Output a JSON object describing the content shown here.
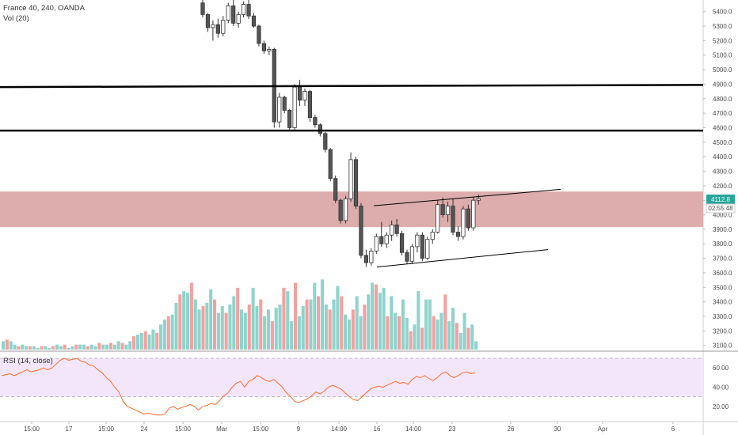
{
  "header": {
    "symbol": "France 40, 240, OANDA",
    "volume_label": "Vol (20)",
    "rsi_label": "RSI (14, close)"
  },
  "price_tag": {
    "price": "4112.8",
    "countdown": "02:55:48"
  },
  "colors": {
    "up": "#26a69a",
    "down": "#ef5350",
    "candle_body": "#555555",
    "vol_up": "#8fd3cc",
    "vol_down": "#f5a0a0",
    "zone": "#d9a3a3",
    "rsi_line": "#ff6d2a",
    "rsi_band": "#f3e6fb"
  },
  "chart_data": [
    {
      "type": "candlestick",
      "title": "France 40, 240, OANDA",
      "y_axis_ticks": [
        3100,
        3200,
        3300,
        3400,
        3500,
        3600,
        3700,
        3800,
        3900,
        4000,
        4100,
        4200,
        4300,
        4400,
        4500,
        4600,
        4700,
        4800,
        4900,
        5000,
        5100,
        5200,
        5300,
        5400
      ],
      "ylim": [
        3060,
        5480
      ],
      "x_axis_ticks": [
        "15:00",
        "17",
        "15:00",
        "24",
        "15:00",
        "Mar",
        "15:00",
        "9",
        "14:00",
        "16",
        "14:00",
        "23",
        "26",
        "30",
        "Apr",
        "6"
      ],
      "horizontal_lines": [
        4580
      ],
      "sloped_line": {
        "from": 4880,
        "to": 4895
      },
      "resistance_zone": [
        3915,
        4160
      ],
      "channel": {
        "upper": [
          4062,
          4175
        ],
        "lower": [
          3640,
          3760
        ]
      },
      "candles": [
        {
          "o": 5460,
          "h": 5480,
          "l": 5360,
          "c": 5380
        },
        {
          "o": 5380,
          "h": 5390,
          "l": 5260,
          "c": 5290
        },
        {
          "o": 5290,
          "h": 5340,
          "l": 5200,
          "c": 5310
        },
        {
          "o": 5310,
          "h": 5350,
          "l": 5220,
          "c": 5250
        },
        {
          "o": 5250,
          "h": 5370,
          "l": 5230,
          "c": 5340
        },
        {
          "o": 5340,
          "h": 5460,
          "l": 5320,
          "c": 5440
        },
        {
          "o": 5440,
          "h": 5480,
          "l": 5300,
          "c": 5320
        },
        {
          "o": 5320,
          "h": 5400,
          "l": 5290,
          "c": 5380
        },
        {
          "o": 5380,
          "h": 5470,
          "l": 5360,
          "c": 5450
        },
        {
          "o": 5450,
          "h": 5480,
          "l": 5350,
          "c": 5370
        },
        {
          "o": 5370,
          "h": 5390,
          "l": 5290,
          "c": 5300
        },
        {
          "o": 5300,
          "h": 5310,
          "l": 5160,
          "c": 5180
        },
        {
          "o": 5180,
          "h": 5200,
          "l": 5110,
          "c": 5130
        },
        {
          "o": 5130,
          "h": 5160,
          "l": 5100,
          "c": 5140
        },
        {
          "o": 5140,
          "h": 5150,
          "l": 4600,
          "c": 4640
        },
        {
          "o": 4640,
          "h": 4840,
          "l": 4600,
          "c": 4810
        },
        {
          "o": 4810,
          "h": 4820,
          "l": 4700,
          "c": 4720
        },
        {
          "o": 4720,
          "h": 4730,
          "l": 4580,
          "c": 4600
        },
        {
          "o": 4600,
          "h": 4900,
          "l": 4580,
          "c": 4880
        },
        {
          "o": 4880,
          "h": 4930,
          "l": 4750,
          "c": 4790
        },
        {
          "o": 4790,
          "h": 4870,
          "l": 4750,
          "c": 4850
        },
        {
          "o": 4850,
          "h": 4860,
          "l": 4640,
          "c": 4670
        },
        {
          "o": 4670,
          "h": 4690,
          "l": 4600,
          "c": 4620
        },
        {
          "o": 4620,
          "h": 4630,
          "l": 4540,
          "c": 4560
        },
        {
          "o": 4560,
          "h": 4570,
          "l": 4430,
          "c": 4450
        },
        {
          "o": 4450,
          "h": 4460,
          "l": 4230,
          "c": 4250
        },
        {
          "o": 4250,
          "h": 4270,
          "l": 4080,
          "c": 4100
        },
        {
          "o": 4100,
          "h": 4110,
          "l": 3940,
          "c": 3960
        },
        {
          "o": 3960,
          "h": 4130,
          "l": 3940,
          "c": 4110
        },
        {
          "o": 4110,
          "h": 4430,
          "l": 4090,
          "c": 4380
        },
        {
          "o": 4380,
          "h": 4400,
          "l": 4040,
          "c": 4060
        },
        {
          "o": 4060,
          "h": 4080,
          "l": 3700,
          "c": 3720
        },
        {
          "o": 3720,
          "h": 3760,
          "l": 3640,
          "c": 3670
        },
        {
          "o": 3670,
          "h": 3770,
          "l": 3650,
          "c": 3750
        },
        {
          "o": 3750,
          "h": 3870,
          "l": 3730,
          "c": 3850
        },
        {
          "o": 3850,
          "h": 3950,
          "l": 3780,
          "c": 3800
        },
        {
          "o": 3800,
          "h": 3880,
          "l": 3770,
          "c": 3860
        },
        {
          "o": 3860,
          "h": 3960,
          "l": 3820,
          "c": 3930
        },
        {
          "o": 3930,
          "h": 3970,
          "l": 3850,
          "c": 3870
        },
        {
          "o": 3870,
          "h": 3890,
          "l": 3720,
          "c": 3740
        },
        {
          "o": 3740,
          "h": 3760,
          "l": 3660,
          "c": 3680
        },
        {
          "o": 3680,
          "h": 3800,
          "l": 3660,
          "c": 3780
        },
        {
          "o": 3780,
          "h": 3880,
          "l": 3740,
          "c": 3860
        },
        {
          "o": 3860,
          "h": 3880,
          "l": 3680,
          "c": 3700
        },
        {
          "o": 3700,
          "h": 3850,
          "l": 3690,
          "c": 3830
        },
        {
          "o": 3830,
          "h": 3900,
          "l": 3800,
          "c": 3880
        },
        {
          "o": 3880,
          "h": 4100,
          "l": 3870,
          "c": 4070
        },
        {
          "o": 4070,
          "h": 4120,
          "l": 3980,
          "c": 4000
        },
        {
          "o": 4000,
          "h": 4090,
          "l": 3950,
          "c": 4060
        },
        {
          "o": 4060,
          "h": 4110,
          "l": 3860,
          "c": 3880
        },
        {
          "o": 3880,
          "h": 3920,
          "l": 3820,
          "c": 3850
        },
        {
          "o": 3850,
          "h": 4060,
          "l": 3830,
          "c": 4040
        },
        {
          "o": 4040,
          "h": 4070,
          "l": 3890,
          "c": 3910
        },
        {
          "o": 3910,
          "h": 4120,
          "l": 3890,
          "c": 4100
        },
        {
          "o": 4100,
          "h": 4140,
          "l": 4070,
          "c": 4112
        }
      ]
    },
    {
      "type": "bar",
      "title": "Vol (20)",
      "values": [
        5,
        6,
        5,
        3,
        2,
        3,
        2,
        2,
        2,
        1,
        2,
        2,
        1,
        2,
        3,
        2,
        3,
        1,
        2,
        3,
        3,
        3,
        2,
        3,
        2,
        4,
        3,
        3,
        4,
        3,
        5,
        4,
        3,
        5,
        8,
        9,
        10,
        11,
        9,
        12,
        10,
        15,
        18,
        20,
        21,
        28,
        33,
        35,
        34,
        40,
        30,
        24,
        26,
        28,
        36,
        30,
        22,
        26,
        22,
        27,
        32,
        37,
        24,
        22,
        27,
        37,
        26,
        30,
        20,
        24,
        17,
        25,
        27,
        37,
        35,
        17,
        40,
        20,
        26,
        30,
        30,
        40,
        32,
        42,
        27,
        24,
        30,
        38,
        32,
        21,
        18,
        24,
        32,
        20,
        27,
        33,
        40,
        39,
        34,
        37,
        20,
        32,
        22,
        20,
        30,
        19,
        11,
        15,
        35,
        13,
        30,
        30,
        20,
        18,
        22,
        33,
        17,
        25,
        16,
        10,
        22,
        13,
        15,
        5
      ],
      "colors": "alternating up/down per candle"
    },
    {
      "type": "line",
      "title": "RSI (14, close)",
      "y_axis_ticks": [
        20,
        40,
        60
      ],
      "band": [
        30,
        70
      ],
      "ylim": [
        5,
        75
      ],
      "values": [
        52,
        53,
        54,
        52,
        54,
        56,
        58,
        56,
        57,
        58,
        60,
        58,
        60,
        64,
        68,
        70,
        68,
        69,
        70,
        67,
        66,
        63,
        62,
        58,
        55,
        50,
        46,
        40,
        35,
        25,
        20,
        18,
        16,
        14,
        12,
        13,
        12,
        11,
        11,
        12,
        18,
        20,
        17,
        19,
        20,
        22,
        20,
        16,
        20,
        21,
        23,
        22,
        26,
        31,
        34,
        40,
        44,
        46,
        40,
        46,
        48,
        52,
        50,
        47,
        46,
        48,
        44,
        40,
        34,
        30,
        25,
        24,
        26,
        28,
        31,
        35,
        33,
        36,
        40,
        42,
        40,
        38,
        34,
        30,
        27,
        26,
        30,
        34,
        38,
        40,
        41,
        40,
        42,
        44,
        46,
        44,
        45,
        43,
        48,
        51,
        50,
        52,
        49,
        47,
        50,
        54,
        56,
        52,
        50,
        52,
        55,
        56,
        54,
        55
      ]
    }
  ]
}
